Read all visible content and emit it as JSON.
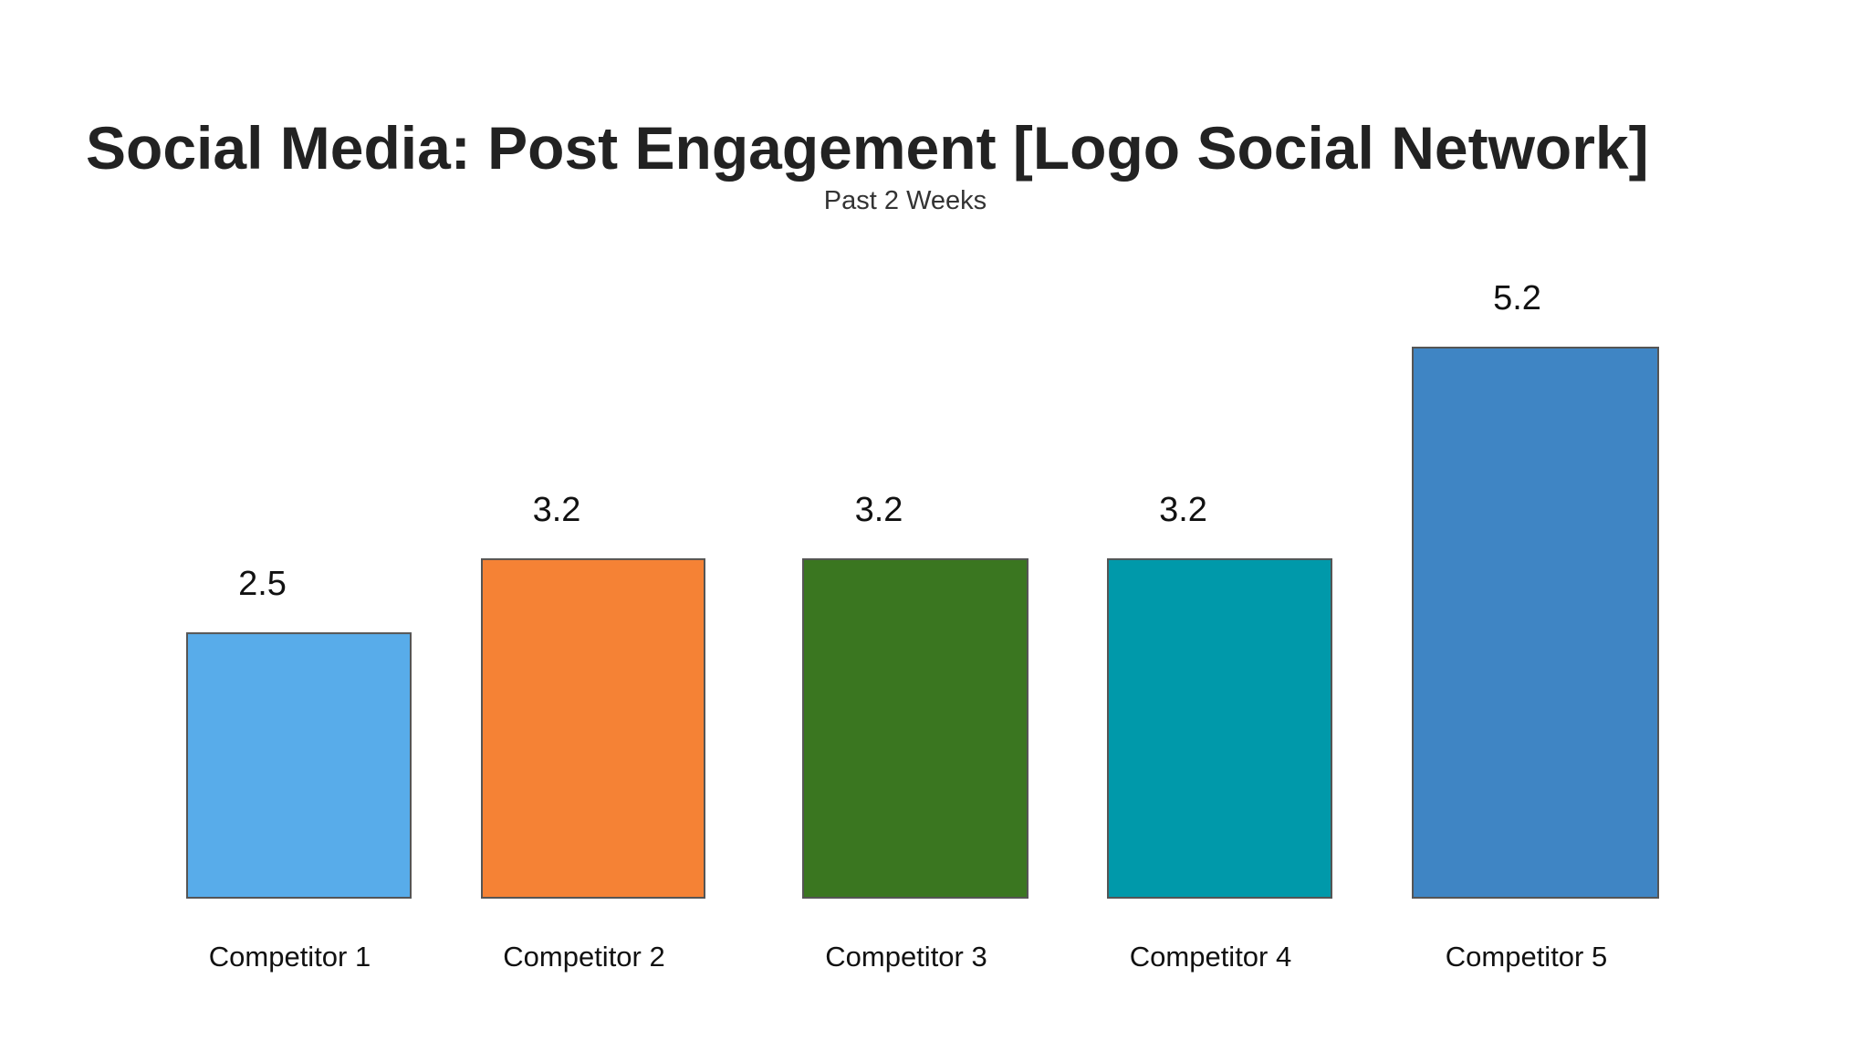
{
  "chart_data": {
    "type": "bar",
    "title": "Social Media: Post Engagement [Logo Social Network]",
    "subtitle": "Past 2 Weeks",
    "categories": [
      "Competitor 1",
      "Competitor 2",
      "Competitor 3",
      "Competitor 4",
      "Competitor 5"
    ],
    "values": [
      2.5,
      3.2,
      3.2,
      3.2,
      5.2
    ],
    "colors": [
      "#58acea",
      "#f58235",
      "#3a7620",
      "#0099aa",
      "#3f85c4"
    ]
  }
}
